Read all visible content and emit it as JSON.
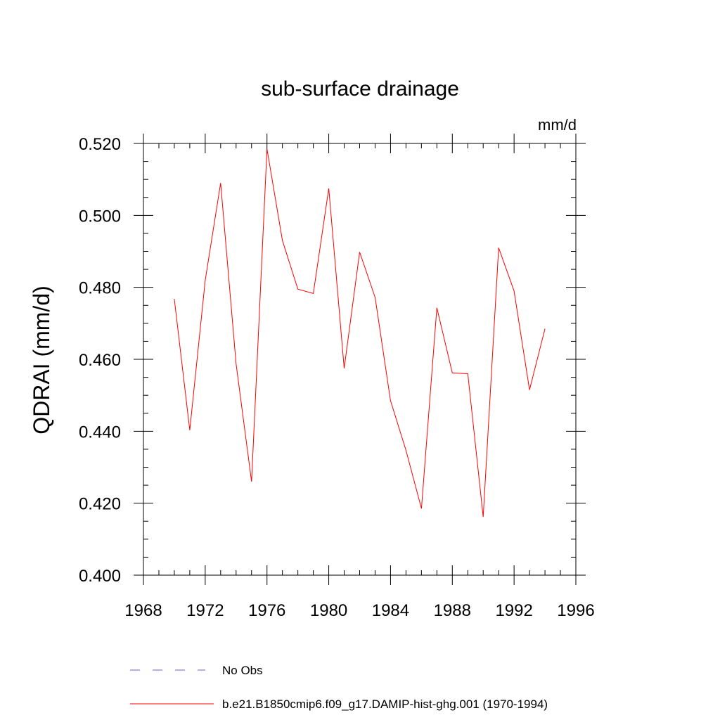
{
  "chart_data": {
    "type": "line",
    "title": "sub-surface drainage",
    "units": "mm/d",
    "ylabel": "QDRAI  (mm/d)",
    "xlabel": "",
    "xlim": [
      1968,
      1996
    ],
    "ylim": [
      0.4,
      0.52
    ],
    "xticks": [
      "1968",
      "1972",
      "1976",
      "1980",
      "1984",
      "1988",
      "1992",
      "1996"
    ],
    "yticks": [
      "0.400",
      "0.420",
      "0.440",
      "0.460",
      "0.480",
      "0.500",
      "0.520"
    ],
    "series": [
      {
        "name": "b.e21.B1850cmip6.f09_g17.DAMIP-hist-ghg.001 (1970-1994)",
        "color": "#ff0000",
        "x": [
          1970,
          1971,
          1972,
          1973,
          1974,
          1975,
          1976,
          1977,
          1978,
          1979,
          1980,
          1981,
          1982,
          1983,
          1984,
          1985,
          1986,
          1987,
          1988,
          1989,
          1990,
          1991,
          1992,
          1993,
          1994
        ],
        "values": [
          0.4768,
          0.4403,
          0.482,
          0.509,
          0.4587,
          0.426,
          0.5185,
          0.493,
          0.4795,
          0.4783,
          0.5075,
          0.4575,
          0.4898,
          0.4772,
          0.4485,
          0.4347,
          0.4185,
          0.4743,
          0.4562,
          0.456,
          0.4162,
          0.491,
          0.479,
          0.4515,
          0.4685
        ]
      }
    ],
    "legend": [
      {
        "label": "No Obs",
        "color": "#6a5acd",
        "dash": true
      },
      {
        "label": "b.e21.B1850cmip6.f09_g17.DAMIP-hist-ghg.001 (1970-1994)",
        "color": "#ff0000",
        "dash": false
      }
    ],
    "legend_position": "bottom",
    "grid": false
  }
}
